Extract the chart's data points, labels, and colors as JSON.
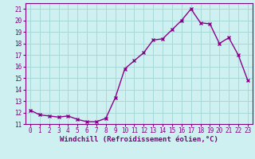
{
  "x": [
    0,
    1,
    2,
    3,
    4,
    5,
    6,
    7,
    8,
    9,
    10,
    11,
    12,
    13,
    14,
    15,
    16,
    17,
    18,
    19,
    20,
    21,
    22,
    23
  ],
  "y": [
    12.2,
    11.8,
    11.7,
    11.6,
    11.7,
    11.4,
    11.2,
    11.2,
    11.5,
    13.3,
    15.8,
    16.5,
    17.2,
    18.3,
    18.4,
    19.2,
    20.0,
    21.0,
    19.8,
    19.7,
    18.0,
    18.5,
    17.0,
    14.8
  ],
  "line_color": "#8b008b",
  "marker": "x",
  "bg_color": "#cff0f0",
  "grid_color": "#a8d8d8",
  "xlabel": "Windchill (Refroidissement éolien,°C)",
  "ylim": [
    11,
    21.5
  ],
  "xlim": [
    -0.5,
    23.5
  ],
  "yticks": [
    11,
    12,
    13,
    14,
    15,
    16,
    17,
    18,
    19,
    20,
    21
  ],
  "xticks": [
    0,
    1,
    2,
    3,
    4,
    5,
    6,
    7,
    8,
    9,
    10,
    11,
    12,
    13,
    14,
    15,
    16,
    17,
    18,
    19,
    20,
    21,
    22,
    23
  ],
  "font_color": "#800080",
  "tick_fontsize": 5.5,
  "xlabel_fontsize": 6.5
}
